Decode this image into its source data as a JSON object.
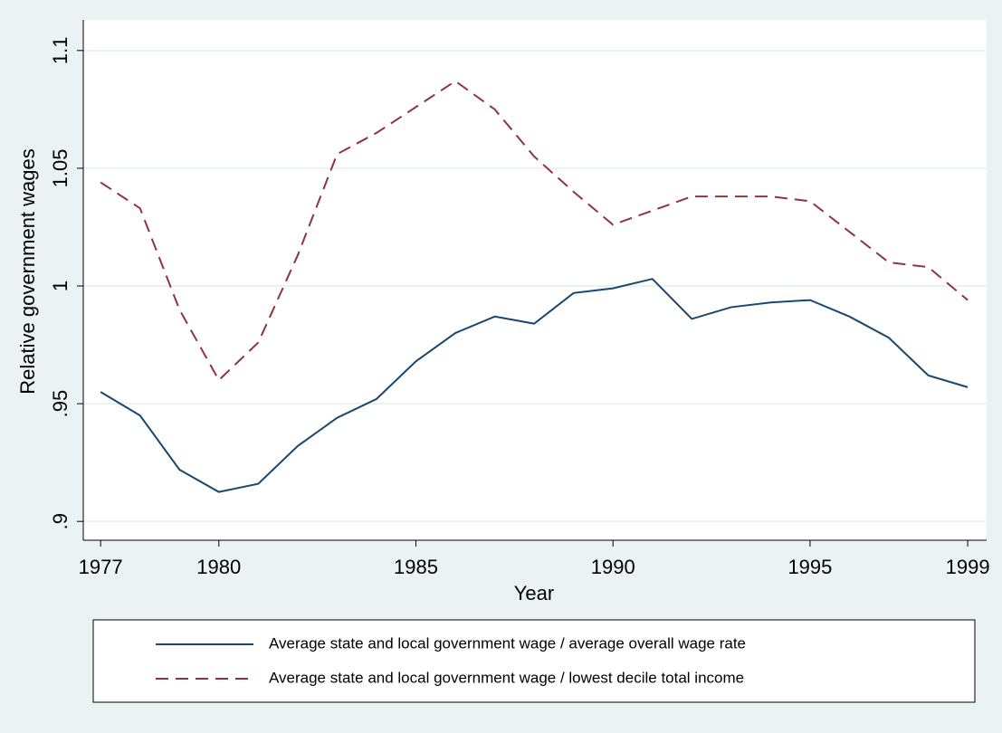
{
  "chart_data": {
    "type": "line",
    "x_label": "Year",
    "y_label": "Relative government wages",
    "x": [
      1977,
      1978,
      1979,
      1980,
      1981,
      1982,
      1983,
      1984,
      1985,
      1986,
      1987,
      1988,
      1989,
      1990,
      1991,
      1992,
      1993,
      1994,
      1995,
      1996,
      1997,
      1998,
      1999
    ],
    "series": [
      {
        "name": "Average state and local government wage / average overall wage rate",
        "color": "#1a476f",
        "dash": false,
        "values": [
          0.955,
          0.945,
          0.922,
          0.9125,
          0.916,
          0.932,
          0.944,
          0.952,
          0.968,
          0.98,
          0.987,
          0.984,
          0.997,
          0.999,
          1.003,
          0.986,
          0.991,
          0.993,
          0.994,
          0.987,
          0.978,
          0.962,
          0.957
        ]
      },
      {
        "name": "Average state and local government wage / lowest decile total income",
        "color": "#90353b",
        "dash": true,
        "values": [
          1.044,
          1.033,
          0.99,
          0.96,
          0.976,
          1.013,
          1.056,
          1.065,
          1.076,
          1.087,
          1.075,
          1.055,
          1.04,
          1.026,
          1.032,
          1.038,
          1.038,
          1.038,
          1.036,
          1.023,
          1.01,
          1.008,
          0.994
        ]
      }
    ],
    "xlim": [
      1976.56,
      1999.48
    ],
    "xticks": [
      1977,
      1980,
      1985,
      1990,
      1995,
      1999
    ],
    "ylim": [
      0.892,
      1.113
    ],
    "yticks": [
      {
        "value": 0.9,
        "label": ".9"
      },
      {
        "value": 0.95,
        "label": ".95"
      },
      1,
      1.05,
      1.1
    ],
    "grid": true
  }
}
